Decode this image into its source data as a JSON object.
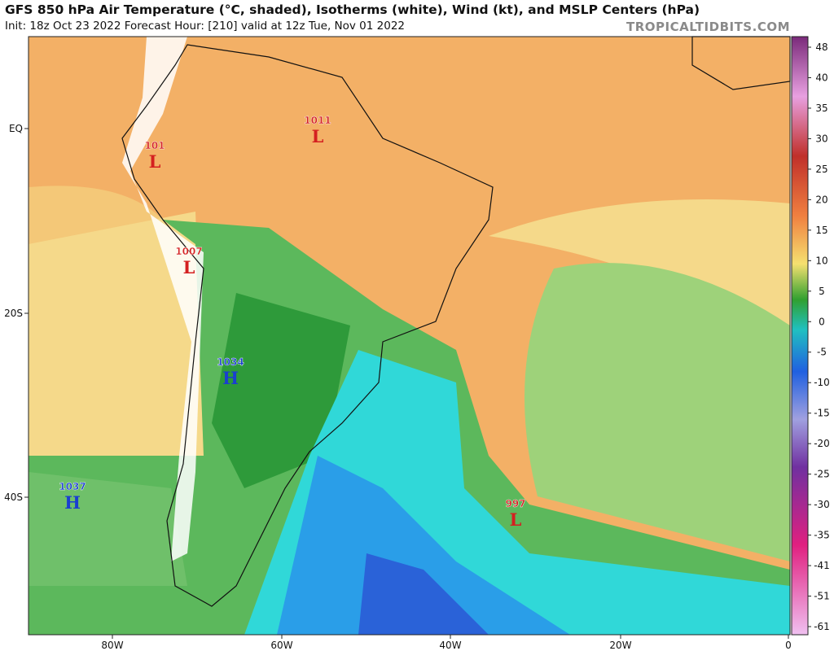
{
  "header": {
    "title": "GFS 850 hPa Air Temperature (°C, shaded), Isotherms (white), Wind (kt), and MSLP Centers (hPa)",
    "subtitle": "Init: 18z Oct 23 2022   Forecast Hour: [210]   valid at 12z Tue, Nov 01 2022",
    "brand": "TROPICALTIDBITS.COM"
  },
  "latitude_labels": [
    "EQ",
    "20S",
    "40S"
  ],
  "longitude_labels": [
    "80W",
    "60W",
    "40W",
    "20W",
    "0"
  ],
  "colorbar_ticks": [
    48,
    40,
    35,
    30,
    25,
    20,
    15,
    10,
    5,
    0,
    -5,
    -10,
    -15,
    -20,
    -25,
    -30,
    -35,
    -41,
    -51,
    -61
  ],
  "pressure_centers": [
    {
      "value": "1011",
      "letter": "L"
    },
    {
      "value": "101",
      "letter": "L"
    },
    {
      "value": "1007",
      "letter": "L"
    },
    {
      "value": "1034",
      "letter": "H"
    },
    {
      "value": "1037",
      "letter": "H"
    },
    {
      "value": "997",
      "letter": "L"
    }
  ]
}
